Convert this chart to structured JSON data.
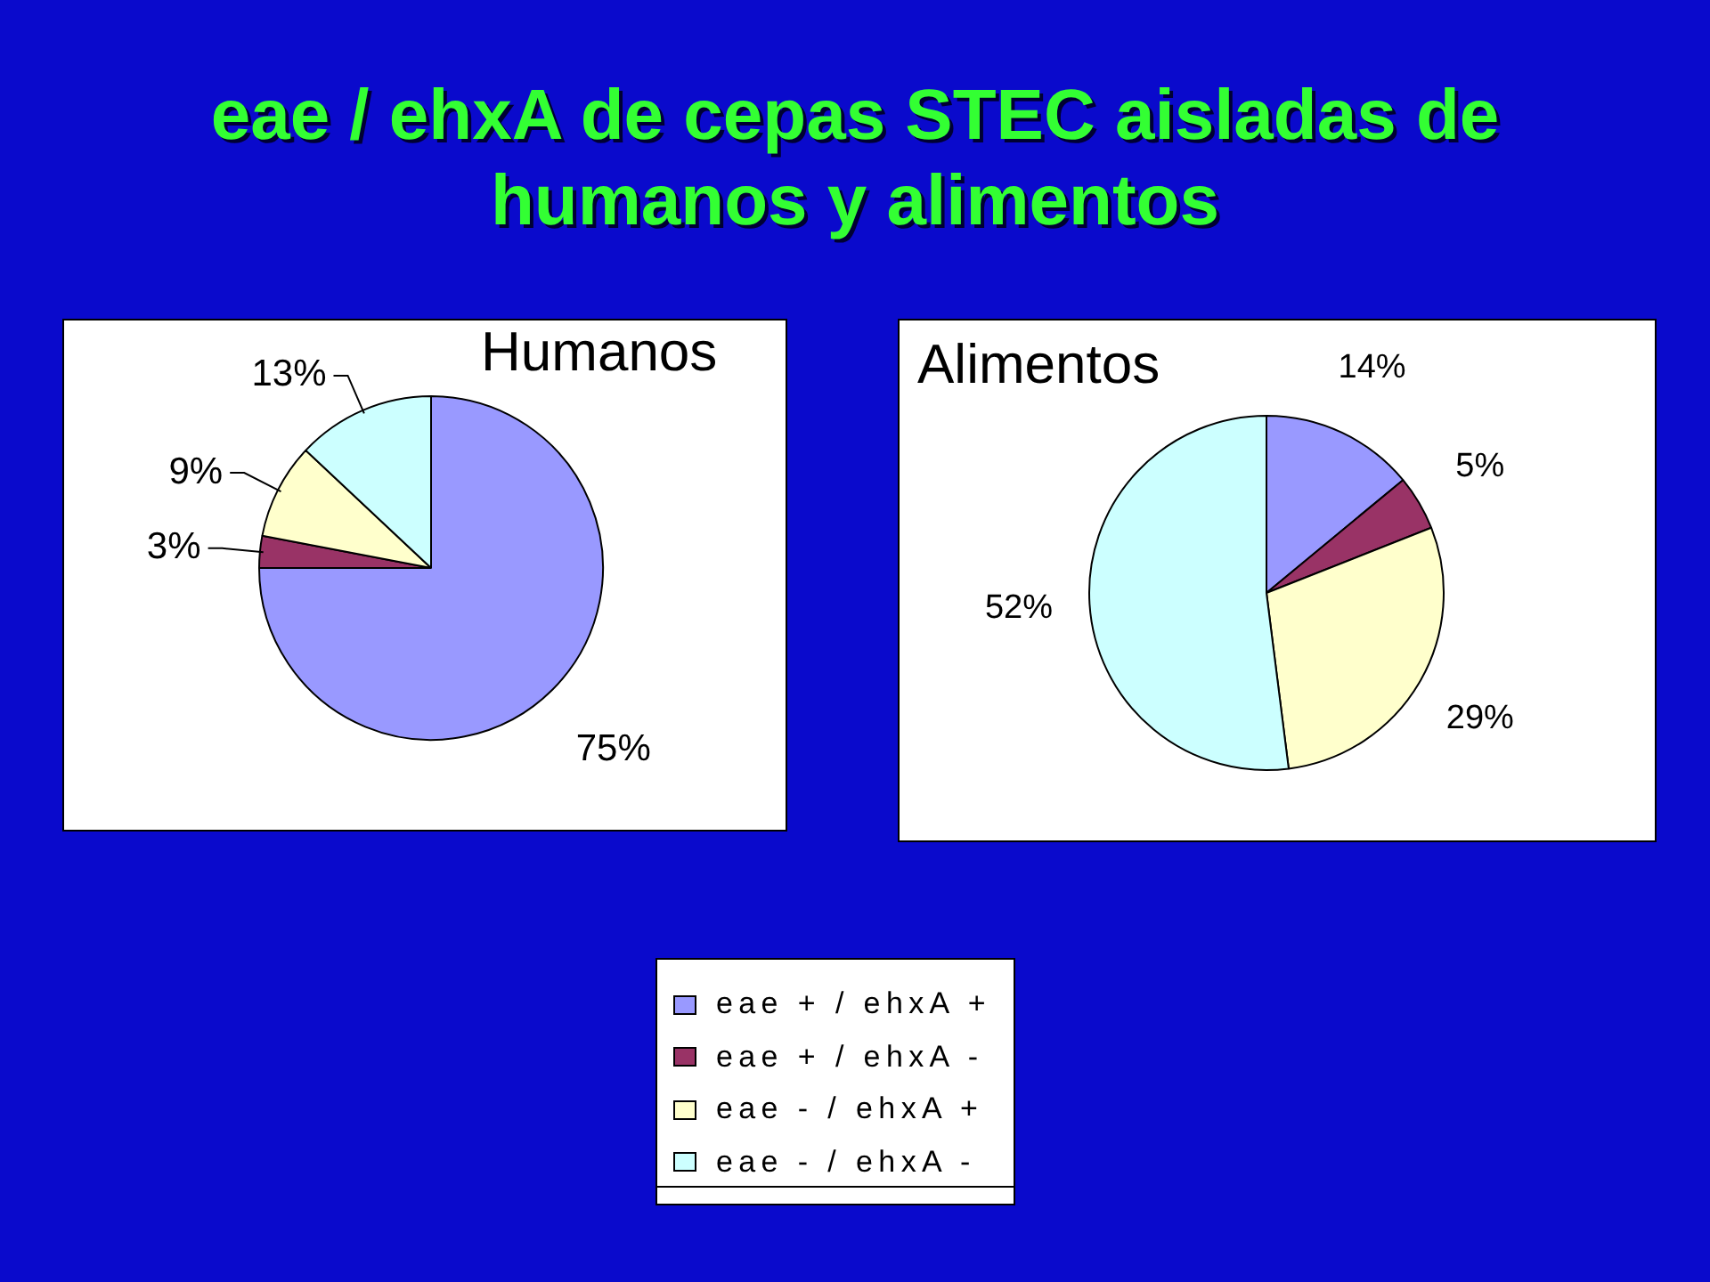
{
  "chart_data": [
    {
      "type": "pie",
      "title": "eae / ehxA de cepas STEC aisladas de humanos y alimentos",
      "subtitle": "Humanos",
      "categories": [
        "eae + / ehxA +",
        "eae + / ehxA -",
        "eae - / ehxA +",
        "eae - / ehxA -"
      ],
      "values": [
        75,
        3,
        9,
        13
      ],
      "colors": [
        "#9999ff",
        "#993366",
        "#ffffcc",
        "#ccffff"
      ],
      "value_labels": [
        "75%",
        "3%",
        "9%",
        "13%"
      ],
      "legend": "bottom"
    },
    {
      "type": "pie",
      "subtitle": "Alimentos",
      "categories": [
        null,
        null,
        null,
        null
      ],
      "values": [
        14,
        5,
        29,
        52
      ],
      "colors": [
        "#9999ff",
        "#993366",
        "#ffffcc",
        "#ccffff"
      ],
      "value_labels": [
        "14%",
        "5%",
        "29%",
        "52%"
      ]
    }
  ]
}
